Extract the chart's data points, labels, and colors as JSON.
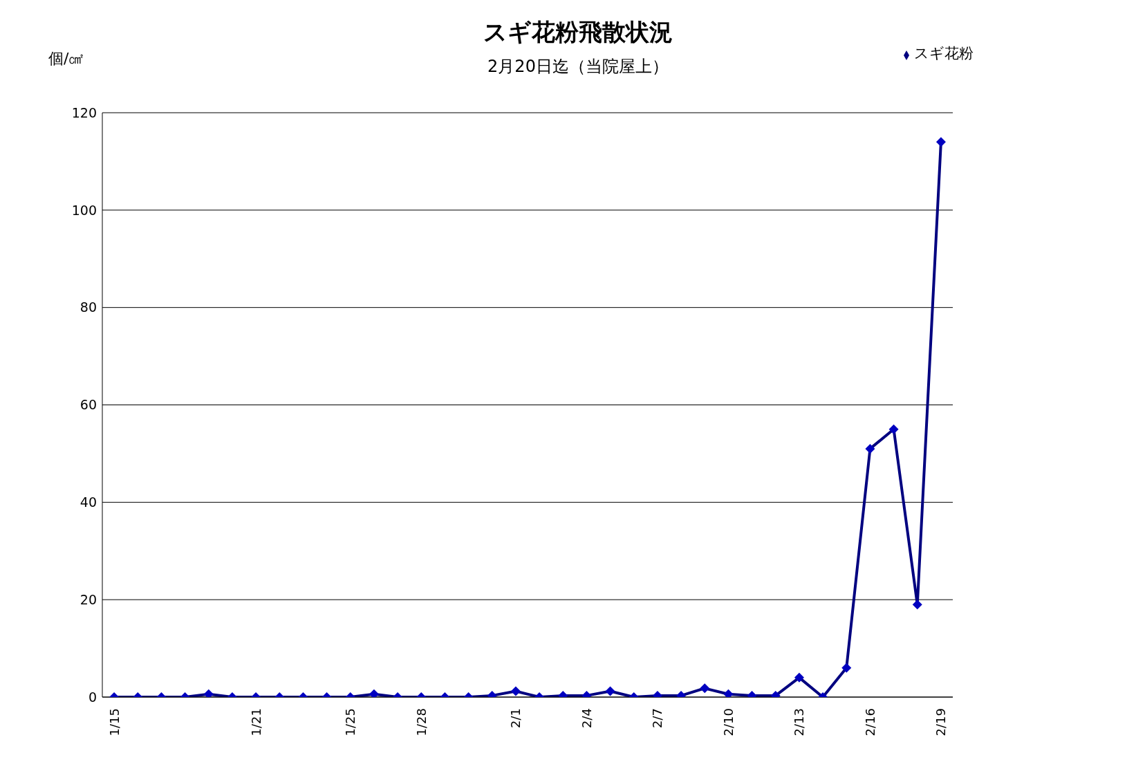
{
  "chart_data": {
    "type": "line",
    "title": "スギ花粉飛散状況",
    "subtitle": "2月20日迄（当院屋上）",
    "ylabel": "個/㎠",
    "categories": [
      "1/15",
      null,
      null,
      null,
      null,
      null,
      "1/21",
      null,
      null,
      null,
      "1/25",
      null,
      null,
      "1/28",
      null,
      null,
      null,
      "2/1",
      null,
      null,
      "2/4",
      null,
      null,
      "2/7",
      null,
      null,
      "2/10",
      null,
      null,
      "2/13",
      null,
      null,
      "2/16",
      null,
      null,
      "2/19"
    ],
    "series": [
      {
        "name": "スギ花粉",
        "color": "#000080",
        "values": [
          0,
          0,
          0,
          0,
          0.6,
          0,
          0,
          0,
          0,
          0,
          0,
          0.6,
          0,
          0,
          0,
          0,
          0.3,
          1.2,
          0,
          0.3,
          0.3,
          1.2,
          0,
          0.3,
          0.3,
          1.8,
          0.6,
          0.3,
          0.3,
          4,
          0,
          6,
          51,
          55,
          19,
          114
        ]
      }
    ],
    "ylim": [
      0,
      120
    ],
    "yticks": [
      0,
      20,
      40,
      60,
      80,
      100,
      120
    ],
    "grid": "y",
    "legend": "top right",
    "marker": "diamond",
    "line_style": "solid"
  }
}
